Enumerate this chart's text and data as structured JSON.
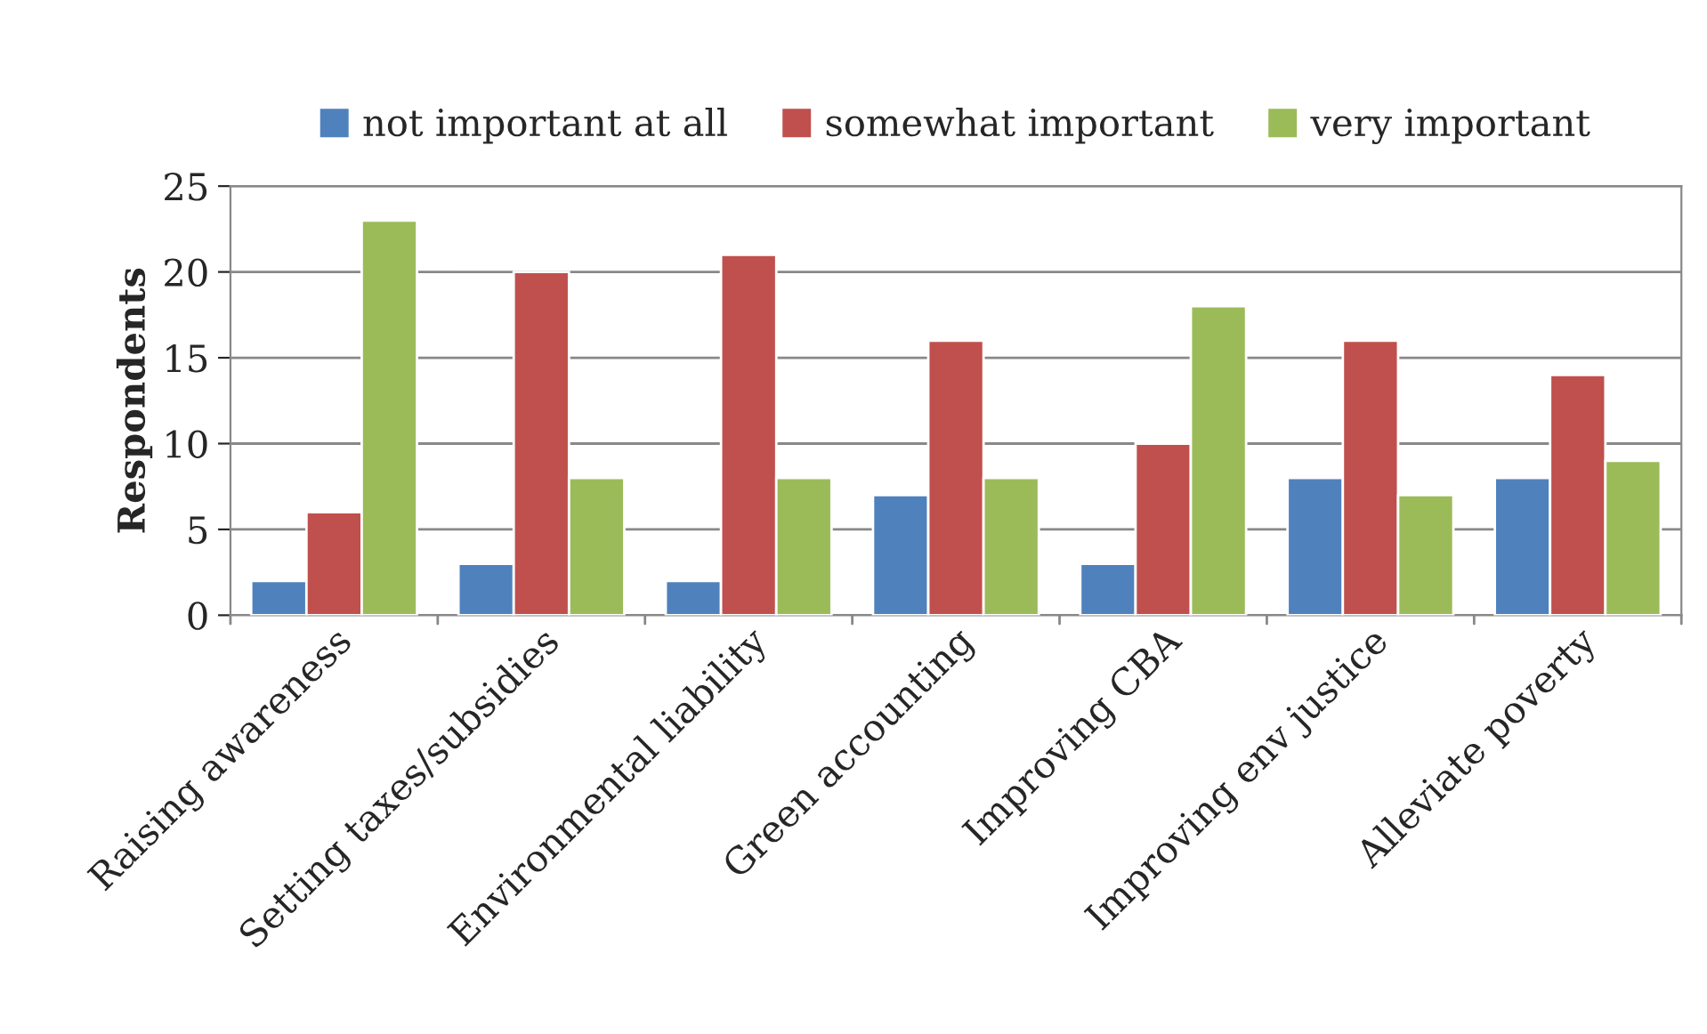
{
  "chart_data": {
    "type": "bar",
    "ylabel": "Respondents",
    "categories": [
      "Raising awareness",
      "Setting taxes/subsidies",
      "Environmental liability",
      "Green accounting",
      "Improving CBA",
      "Improving env justice",
      "Alleviate poverty"
    ],
    "series": [
      {
        "name": "not important at all",
        "color": "#4f81bd",
        "values": [
          2,
          3,
          2,
          7,
          3,
          8,
          8
        ]
      },
      {
        "name": "somewhat important",
        "color": "#c0504d",
        "values": [
          6,
          20,
          21,
          16,
          10,
          16,
          14
        ]
      },
      {
        "name": "very important",
        "color": "#9bbb59",
        "values": [
          23,
          8,
          8,
          8,
          18,
          7,
          9
        ]
      }
    ],
    "ylim": [
      0,
      25
    ],
    "yticks": [
      0,
      5,
      10,
      15,
      20,
      25
    ],
    "grid": "y",
    "legend": "top"
  }
}
